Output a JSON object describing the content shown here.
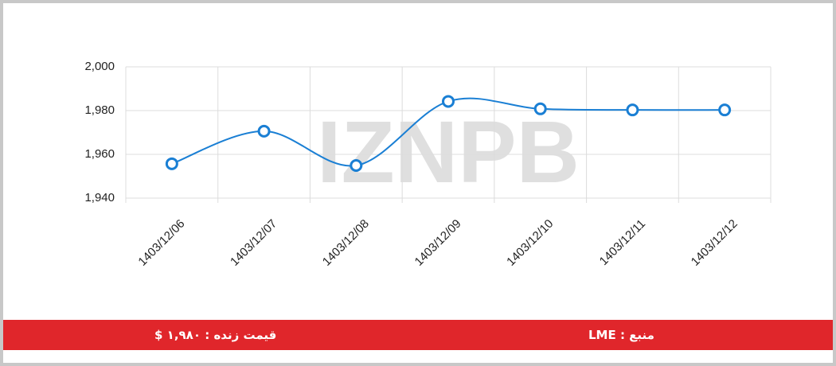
{
  "chart_data": {
    "type": "line",
    "watermark": "IZNPB",
    "categories": [
      "1403/12/06",
      "1403/12/07",
      "1403/12/08",
      "1403/12/09",
      "1403/12/10",
      "1403/12/11",
      "1403/12/12"
    ],
    "series": [
      {
        "color": "#1a7fd4",
        "values": [
          1955.7,
          1970.6,
          1954.9,
          1984.2,
          1980.8,
          1980.3,
          1980.3
        ]
      }
    ],
    "ylim": [
      1940,
      2000
    ],
    "yticks": [
      {
        "value": 1940,
        "label": "1,940"
      },
      {
        "value": 1960,
        "label": "1,960"
      },
      {
        "value": 1980,
        "label": "1,980"
      },
      {
        "value": 2000,
        "label": "2,000"
      }
    ],
    "grid": true
  },
  "footer": {
    "price": "قیمت زنده : ۱,۹۸۰ $",
    "source": "منبع : LME"
  }
}
